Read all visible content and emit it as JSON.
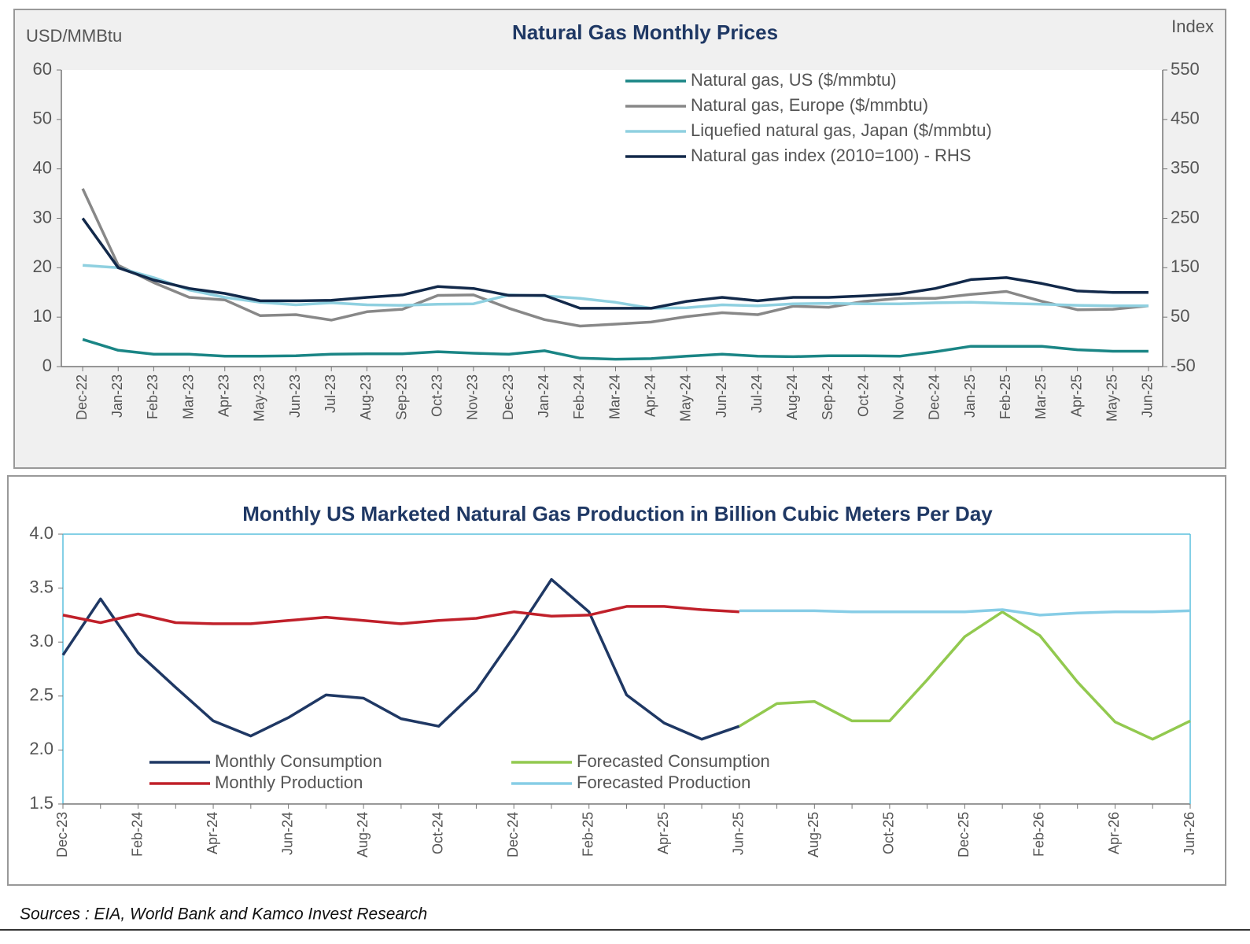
{
  "chart_data": [
    {
      "type": "line",
      "title": "Natural Gas Monthly Prices",
      "y_label": "USD/MMBtu",
      "y2_label": "Index",
      "categories": [
        "Dec-22",
        "Jan-23",
        "Feb-23",
        "Mar-23",
        "Apr-23",
        "May-23",
        "Jun-23",
        "Jul-23",
        "Aug-23",
        "Sep-23",
        "Oct-23",
        "Nov-23",
        "Dec-23",
        "Jan-24",
        "Feb-24",
        "Mar-24",
        "Apr-24",
        "May-24",
        "Jun-24",
        "Jul-24",
        "Aug-24",
        "Sep-24",
        "Oct-24",
        "Nov-24",
        "Dec-24",
        "Jan-25",
        "Feb-25",
        "Mar-25",
        "Apr-25",
        "May-25",
        "Jun-25"
      ],
      "series": [
        {
          "name": "Natural gas, US ($/mmbtu)",
          "color": "#1a8585",
          "values": [
            5.5,
            3.3,
            2.5,
            2.5,
            2.1,
            2.1,
            2.2,
            2.5,
            2.6,
            2.6,
            3.0,
            2.7,
            2.5,
            3.2,
            1.7,
            1.5,
            1.6,
            2.1,
            2.5,
            2.1,
            2.0,
            2.2,
            2.2,
            2.1,
            3.0,
            4.1,
            4.1,
            4.1,
            3.4,
            3.1,
            3.1
          ]
        },
        {
          "name": "Natural gas, Europe ($/mmbtu)",
          "color": "#888888",
          "values": [
            36,
            20.5,
            17,
            14,
            13.5,
            10.3,
            10.5,
            9.4,
            11.1,
            11.6,
            14.4,
            14.5,
            11.8,
            9.5,
            8.2,
            8.6,
            9.0,
            10.1,
            10.9,
            10.5,
            12.2,
            12.0,
            13.2,
            13.8,
            13.8,
            14.6,
            15.2,
            13.2,
            11.5,
            11.6,
            12.3
          ]
        },
        {
          "name": "Liquefied natural gas, Japan ($/mmbtu)",
          "color": "#8fd0e0",
          "values": [
            20.5,
            20,
            18,
            15.5,
            14,
            13,
            12.5,
            12.9,
            12.5,
            12.4,
            12.6,
            12.7,
            14.5,
            14.3,
            13.8,
            13.0,
            11.8,
            11.9,
            12.5,
            12.3,
            12.7,
            12.8,
            12.7,
            12.7,
            12.9,
            13.0,
            12.8,
            12.6,
            12.4,
            12.3,
            12.3
          ]
        },
        {
          "name": "Natural gas index (2010=100) - RHS",
          "color": "#12294a",
          "axis": "y2",
          "values": [
            250,
            150,
            125,
            108,
            98,
            83,
            83,
            84,
            90,
            95,
            112,
            108,
            94,
            94,
            68,
            68,
            68,
            82,
            90,
            83,
            90,
            90,
            93,
            97,
            108,
            126,
            130,
            118,
            103,
            100,
            100
          ]
        }
      ],
      "ylim": [
        0,
        60
      ],
      "yticks": [
        0,
        10,
        20,
        30,
        40,
        50,
        60
      ],
      "y2lim": [
        -50,
        550
      ],
      "y2ticks": [
        -50,
        50,
        150,
        250,
        350,
        450,
        550
      ],
      "legend": "upper right"
    },
    {
      "type": "line",
      "title": "Monthly US Marketed Natural Gas Production in Billion Cubic Meters Per Day",
      "categories": [
        "Dec-23",
        null,
        "Feb-24",
        null,
        "Apr-24",
        null,
        "Jun-24",
        null,
        "Aug-24",
        null,
        "Oct-24",
        null,
        "Dec-24",
        null,
        "Feb-25",
        null,
        "Apr-25",
        null,
        "Jun-25",
        null,
        "Aug-25",
        null,
        "Oct-25",
        null,
        "Dec-25",
        null,
        "Feb-26",
        null,
        "Apr-26",
        null,
        "Jun-26"
      ],
      "series": [
        {
          "name": "Monthly Consumption",
          "color": "#1f3864",
          "values": [
            2.88,
            3.4,
            2.9,
            2.58,
            2.27,
            2.13,
            2.3,
            2.51,
            2.48,
            2.29,
            2.22,
            2.55,
            3.05,
            3.58,
            3.28,
            2.51,
            2.25,
            2.1,
            2.22,
            null,
            null,
            null,
            null,
            null,
            null,
            null,
            null,
            null,
            null,
            null,
            null
          ]
        },
        {
          "name": "Forecasted Consumption",
          "color": "#92c94f",
          "values": [
            null,
            null,
            null,
            null,
            null,
            null,
            null,
            null,
            null,
            null,
            null,
            null,
            null,
            null,
            null,
            null,
            null,
            null,
            2.22,
            2.43,
            2.45,
            2.27,
            2.27,
            2.65,
            3.05,
            3.28,
            3.06,
            2.63,
            2.26,
            2.1,
            2.27
          ]
        },
        {
          "name": "Monthly Production",
          "color": "#c0202a",
          "values": [
            3.25,
            3.18,
            3.26,
            3.18,
            3.17,
            3.17,
            3.2,
            3.23,
            3.2,
            3.17,
            3.2,
            3.22,
            3.28,
            3.24,
            3.25,
            3.33,
            3.33,
            3.3,
            3.28,
            null,
            null,
            null,
            null,
            null,
            null,
            null,
            null,
            null,
            null,
            null,
            null
          ]
        },
        {
          "name": "Forecasted Production",
          "color": "#87cde6",
          "values": [
            null,
            null,
            null,
            null,
            null,
            null,
            null,
            null,
            null,
            null,
            null,
            null,
            null,
            null,
            null,
            null,
            null,
            null,
            3.29,
            3.29,
            3.29,
            3.28,
            3.28,
            3.28,
            3.28,
            3.3,
            3.25,
            3.27,
            3.28,
            3.28,
            3.29
          ]
        }
      ],
      "ylim": [
        1.5,
        4.0
      ],
      "yticks": [
        1.5,
        {
          "value": 2,
          "label": "2.0"
        },
        2.5,
        {
          "value": 3,
          "label": "3.0"
        },
        3.5,
        {
          "value": 4,
          "label": "4.0"
        }
      ],
      "legend": "lower left"
    }
  ],
  "source": "Sources : EIA, World Bank and Kamco Invest Research"
}
